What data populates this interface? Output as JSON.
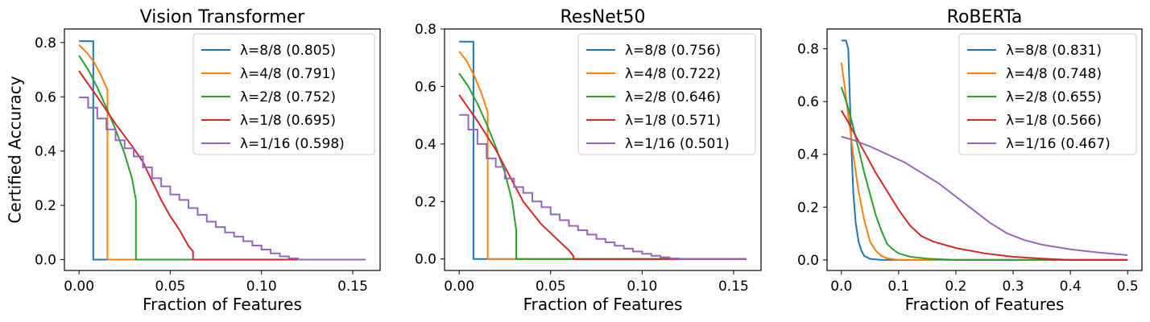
{
  "chart_data": [
    {
      "type": "line",
      "title": "Vision Transformer",
      "xlabel": "Fraction of Features",
      "ylabel": "Certified Accuracy",
      "xlim": [
        -0.008,
        0.165
      ],
      "ylim": [
        -0.04,
        0.85
      ],
      "xticks": [
        0.0,
        0.05,
        0.1,
        0.15
      ],
      "xtick_labels": [
        "0.00",
        "0.05",
        "0.10",
        "0.15"
      ],
      "yticks": [
        0.0,
        0.2,
        0.4,
        0.6,
        0.8
      ],
      "ytick_labels": [
        "0.0",
        "0.2",
        "0.4",
        "0.6",
        "0.8"
      ],
      "legend_position": "top-right",
      "series": [
        {
          "name": "λ=8/8 (0.805)",
          "color": "#1f77b4",
          "step": true,
          "points": [
            [
              0.0,
              0.805
            ],
            [
              0.0078,
              0.805
            ],
            [
              0.0078,
              0.0
            ],
            [
              0.157,
              0.0
            ]
          ]
        },
        {
          "name": "λ=4/8 (0.791)",
          "color": "#ff7f0e",
          "step": false,
          "points": [
            [
              0.0,
              0.791
            ],
            [
              0.004,
              0.765
            ],
            [
              0.008,
              0.73
            ],
            [
              0.012,
              0.68
            ],
            [
              0.0156,
              0.625
            ],
            [
              0.0156,
              0.0
            ],
            [
              0.157,
              0.0
            ]
          ]
        },
        {
          "name": "λ=2/8 (0.752)",
          "color": "#2ca02c",
          "step": false,
          "points": [
            [
              0.0,
              0.752
            ],
            [
              0.005,
              0.7
            ],
            [
              0.01,
              0.635
            ],
            [
              0.015,
              0.56
            ],
            [
              0.02,
              0.48
            ],
            [
              0.025,
              0.39
            ],
            [
              0.029,
              0.3
            ],
            [
              0.0312,
              0.22
            ],
            [
              0.0312,
              0.0
            ],
            [
              0.157,
              0.0
            ]
          ]
        },
        {
          "name": "λ=1/8 (0.695)",
          "color": "#d62728",
          "step": false,
          "points": [
            [
              0.0,
              0.695
            ],
            [
              0.01,
              0.6
            ],
            [
              0.02,
              0.5
            ],
            [
              0.03,
              0.41
            ],
            [
              0.035,
              0.36
            ],
            [
              0.04,
              0.29
            ],
            [
              0.045,
              0.22
            ],
            [
              0.05,
              0.16
            ],
            [
              0.055,
              0.11
            ],
            [
              0.06,
              0.05
            ],
            [
              0.0625,
              0.03
            ],
            [
              0.0625,
              0.0
            ],
            [
              0.157,
              0.0
            ]
          ]
        },
        {
          "name": "λ=1/16 (0.598)",
          "color": "#9467bd",
          "step": true,
          "points": [
            [
              0.0,
              0.598
            ],
            [
              0.005,
              0.56
            ],
            [
              0.01,
              0.52
            ],
            [
              0.015,
              0.48
            ],
            [
              0.02,
              0.44
            ],
            [
              0.025,
              0.41
            ],
            [
              0.03,
              0.38
            ],
            [
              0.035,
              0.34
            ],
            [
              0.04,
              0.3
            ],
            [
              0.045,
              0.27
            ],
            [
              0.05,
              0.24
            ],
            [
              0.055,
              0.22
            ],
            [
              0.06,
              0.19
            ],
            [
              0.065,
              0.165
            ],
            [
              0.07,
              0.14
            ],
            [
              0.075,
              0.12
            ],
            [
              0.08,
              0.1
            ],
            [
              0.085,
              0.085
            ],
            [
              0.09,
              0.068
            ],
            [
              0.095,
              0.052
            ],
            [
              0.1,
              0.037
            ],
            [
              0.105,
              0.023
            ],
            [
              0.11,
              0.012
            ],
            [
              0.115,
              0.005
            ],
            [
              0.12,
              0.0
            ],
            [
              0.157,
              0.0
            ]
          ]
        }
      ]
    },
    {
      "type": "line",
      "title": "ResNet50",
      "xlabel": "Fraction of Features",
      "ylabel": "",
      "xlim": [
        -0.008,
        0.165
      ],
      "ylim": [
        -0.04,
        0.8
      ],
      "xticks": [
        0.0,
        0.05,
        0.1,
        0.15
      ],
      "xtick_labels": [
        "0.00",
        "0.05",
        "0.10",
        "0.15"
      ],
      "yticks": [
        0.0,
        0.2,
        0.4,
        0.6,
        0.8
      ],
      "ytick_labels": [
        "0.0",
        "0.2",
        "0.4",
        "0.6",
        "0.8"
      ],
      "legend_position": "top-right",
      "series": [
        {
          "name": "λ=8/8 (0.756)",
          "color": "#1f77b4",
          "step": true,
          "points": [
            [
              0.0,
              0.756
            ],
            [
              0.0078,
              0.756
            ],
            [
              0.0078,
              0.0
            ],
            [
              0.157,
              0.0
            ]
          ]
        },
        {
          "name": "λ=4/8 (0.722)",
          "color": "#ff7f0e",
          "step": false,
          "points": [
            [
              0.0,
              0.722
            ],
            [
              0.004,
              0.69
            ],
            [
              0.008,
              0.64
            ],
            [
              0.012,
              0.58
            ],
            [
              0.0156,
              0.51
            ],
            [
              0.0156,
              0.0
            ],
            [
              0.157,
              0.0
            ]
          ]
        },
        {
          "name": "λ=2/8 (0.646)",
          "color": "#2ca02c",
          "step": false,
          "points": [
            [
              0.0,
              0.646
            ],
            [
              0.005,
              0.6
            ],
            [
              0.01,
              0.54
            ],
            [
              0.015,
              0.47
            ],
            [
              0.02,
              0.39
            ],
            [
              0.025,
              0.3
            ],
            [
              0.029,
              0.2
            ],
            [
              0.0312,
              0.1
            ],
            [
              0.0312,
              0.0
            ],
            [
              0.157,
              0.0
            ]
          ]
        },
        {
          "name": "λ=1/8 (0.571)",
          "color": "#d62728",
          "step": false,
          "points": [
            [
              0.0,
              0.571
            ],
            [
              0.01,
              0.48
            ],
            [
              0.02,
              0.38
            ],
            [
              0.025,
              0.32
            ],
            [
              0.03,
              0.26
            ],
            [
              0.035,
              0.2
            ],
            [
              0.04,
              0.16
            ],
            [
              0.045,
              0.12
            ],
            [
              0.05,
              0.09
            ],
            [
              0.055,
              0.06
            ],
            [
              0.06,
              0.03
            ],
            [
              0.0625,
              0.01
            ],
            [
              0.0625,
              0.0
            ],
            [
              0.157,
              0.0
            ]
          ]
        },
        {
          "name": "λ=1/16 (0.501)",
          "color": "#9467bd",
          "step": true,
          "points": [
            [
              0.0,
              0.501
            ],
            [
              0.005,
              0.45
            ],
            [
              0.01,
              0.4
            ],
            [
              0.015,
              0.35
            ],
            [
              0.02,
              0.32
            ],
            [
              0.025,
              0.28
            ],
            [
              0.03,
              0.25
            ],
            [
              0.035,
              0.23
            ],
            [
              0.04,
              0.2
            ],
            [
              0.045,
              0.18
            ],
            [
              0.05,
              0.155
            ],
            [
              0.055,
              0.135
            ],
            [
              0.06,
              0.115
            ],
            [
              0.065,
              0.1
            ],
            [
              0.07,
              0.085
            ],
            [
              0.075,
              0.07
            ],
            [
              0.08,
              0.058
            ],
            [
              0.085,
              0.046
            ],
            [
              0.09,
              0.036
            ],
            [
              0.095,
              0.026
            ],
            [
              0.1,
              0.018
            ],
            [
              0.105,
              0.011
            ],
            [
              0.11,
              0.006
            ],
            [
              0.115,
              0.002
            ],
            [
              0.12,
              0.0
            ],
            [
              0.157,
              0.0
            ]
          ]
        }
      ]
    },
    {
      "type": "line",
      "title": "RoBERTa",
      "xlabel": "Fraction of Features",
      "ylabel": "",
      "xlim": [
        -0.025,
        0.525
      ],
      "ylim": [
        -0.04,
        0.875
      ],
      "xticks": [
        0.0,
        0.1,
        0.2,
        0.3,
        0.4,
        0.5
      ],
      "xtick_labels": [
        "0.0",
        "0.1",
        "0.2",
        "0.3",
        "0.4",
        "0.5"
      ],
      "yticks": [
        0.0,
        0.2,
        0.4,
        0.6,
        0.8
      ],
      "ytick_labels": [
        "0.0",
        "0.2",
        "0.4",
        "0.6",
        "0.8"
      ],
      "legend_position": "top-right",
      "series": [
        {
          "name": "λ=8/8 (0.831)",
          "color": "#1f77b4",
          "step": false,
          "points": [
            [
              0.0,
              0.831
            ],
            [
              0.008,
              0.831
            ],
            [
              0.012,
              0.8
            ],
            [
              0.015,
              0.6
            ],
            [
              0.018,
              0.4
            ],
            [
              0.021,
              0.25
            ],
            [
              0.025,
              0.14
            ],
            [
              0.03,
              0.07
            ],
            [
              0.035,
              0.035
            ],
            [
              0.04,
              0.015
            ],
            [
              0.05,
              0.004
            ],
            [
              0.07,
              0.0
            ],
            [
              0.5,
              0.0
            ]
          ]
        },
        {
          "name": "λ=4/8 (0.748)",
          "color": "#ff7f0e",
          "step": false,
          "points": [
            [
              0.0,
              0.748
            ],
            [
              0.005,
              0.67
            ],
            [
              0.01,
              0.58
            ],
            [
              0.015,
              0.5
            ],
            [
              0.02,
              0.41
            ],
            [
              0.03,
              0.26
            ],
            [
              0.04,
              0.15
            ],
            [
              0.05,
              0.07
            ],
            [
              0.06,
              0.035
            ],
            [
              0.07,
              0.015
            ],
            [
              0.08,
              0.006
            ],
            [
              0.1,
              0.0
            ],
            [
              0.5,
              0.0
            ]
          ]
        },
        {
          "name": "λ=2/8 (0.655)",
          "color": "#2ca02c",
          "step": false,
          "points": [
            [
              0.0,
              0.655
            ],
            [
              0.01,
              0.59
            ],
            [
              0.02,
              0.51
            ],
            [
              0.03,
              0.42
            ],
            [
              0.04,
              0.33
            ],
            [
              0.05,
              0.25
            ],
            [
              0.06,
              0.17
            ],
            [
              0.07,
              0.11
            ],
            [
              0.08,
              0.06
            ],
            [
              0.09,
              0.04
            ],
            [
              0.1,
              0.025
            ],
            [
              0.12,
              0.012
            ],
            [
              0.15,
              0.005
            ],
            [
              0.2,
              0.0
            ],
            [
              0.5,
              0.0
            ]
          ]
        },
        {
          "name": "λ=1/8 (0.566)",
          "color": "#d62728",
          "step": false,
          "points": [
            [
              0.0,
              0.566
            ],
            [
              0.01,
              0.53
            ],
            [
              0.02,
              0.49
            ],
            [
              0.04,
              0.41
            ],
            [
              0.06,
              0.33
            ],
            [
              0.08,
              0.26
            ],
            [
              0.1,
              0.19
            ],
            [
              0.12,
              0.13
            ],
            [
              0.14,
              0.09
            ],
            [
              0.16,
              0.07
            ],
            [
              0.2,
              0.045
            ],
            [
              0.25,
              0.025
            ],
            [
              0.3,
              0.012
            ],
            [
              0.35,
              0.005
            ],
            [
              0.4,
              0.0
            ],
            [
              0.5,
              0.0
            ]
          ]
        },
        {
          "name": "λ=1/16 (0.467)",
          "color": "#9467bd",
          "step": false,
          "points": [
            [
              0.0,
              0.467
            ],
            [
              0.02,
              0.455
            ],
            [
              0.05,
              0.43
            ],
            [
              0.08,
              0.4
            ],
            [
              0.11,
              0.37
            ],
            [
              0.14,
              0.33
            ],
            [
              0.17,
              0.29
            ],
            [
              0.2,
              0.24
            ],
            [
              0.23,
              0.19
            ],
            [
              0.26,
              0.14
            ],
            [
              0.29,
              0.1
            ],
            [
              0.32,
              0.075
            ],
            [
              0.35,
              0.058
            ],
            [
              0.4,
              0.04
            ],
            [
              0.45,
              0.028
            ],
            [
              0.5,
              0.018
            ]
          ]
        }
      ]
    }
  ]
}
